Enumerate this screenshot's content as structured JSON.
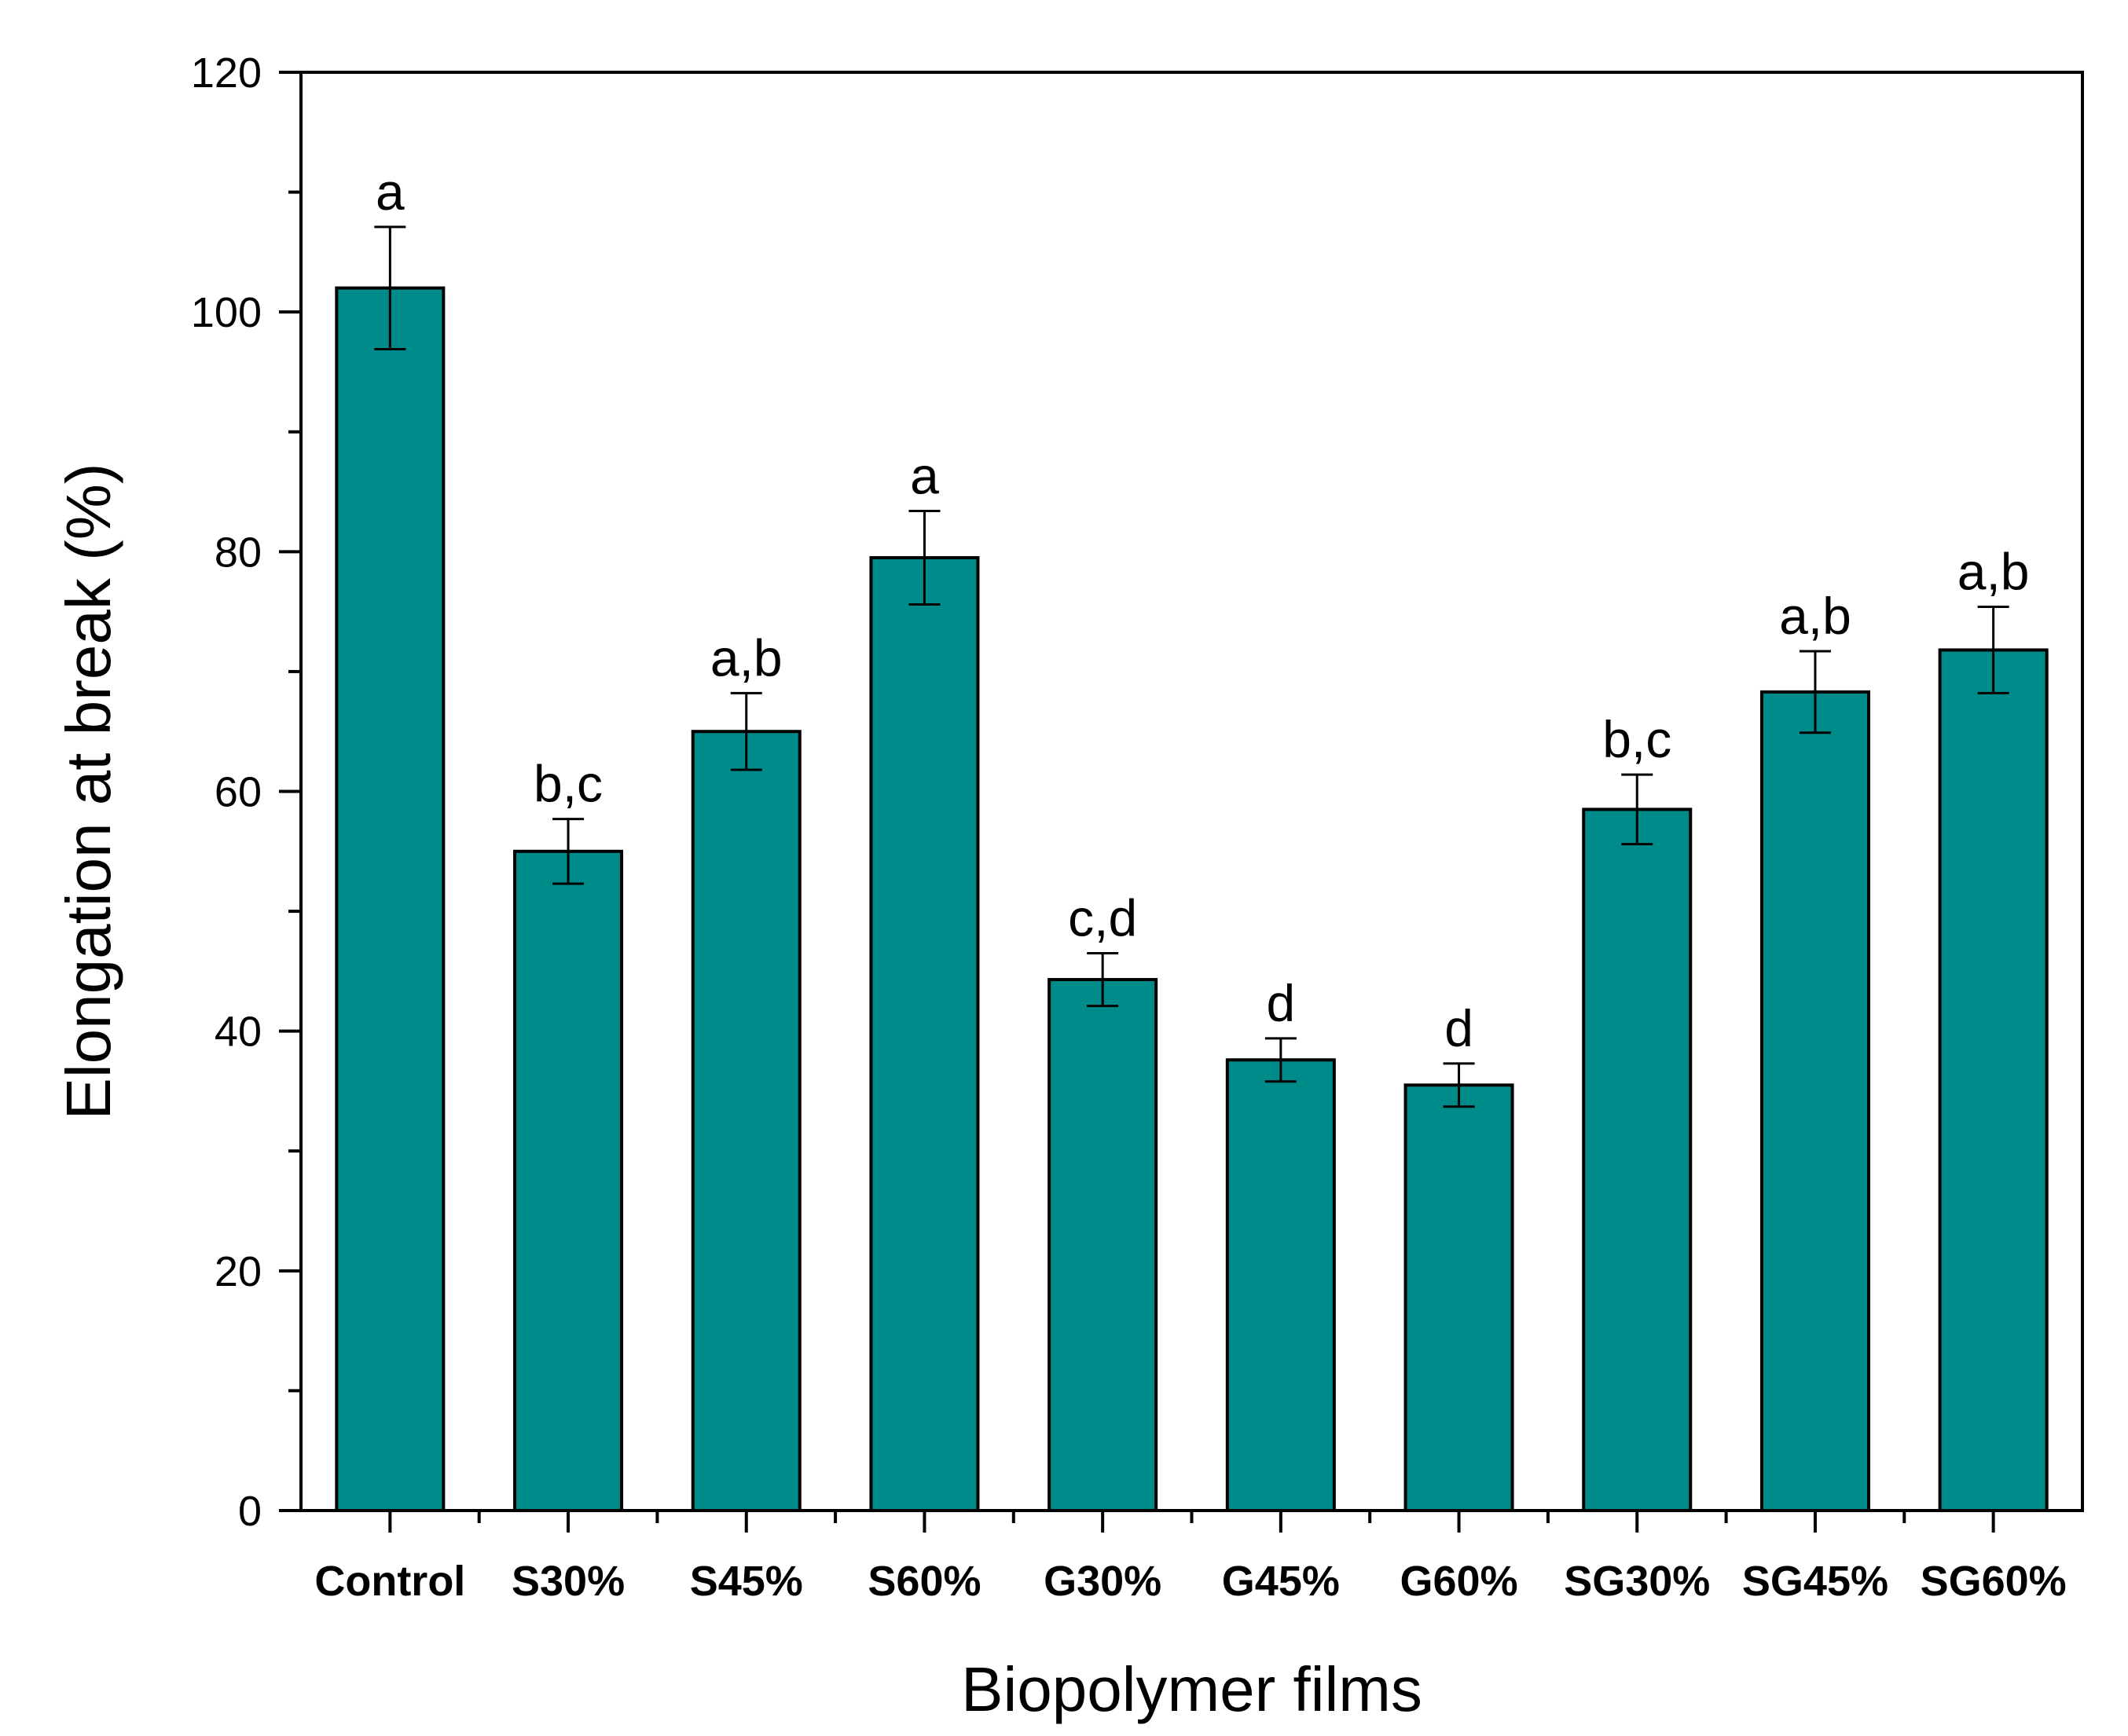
{
  "chart_data": {
    "type": "bar",
    "xlabel": "Biopolymer films",
    "ylabel": "Elongation at break (%)",
    "ylim": [
      0,
      120
    ],
    "yticks": [
      0,
      20,
      40,
      60,
      80,
      100,
      120
    ],
    "categories": [
      "Control",
      "S30%",
      "S45%",
      "S60%",
      "G30%",
      "G45%",
      "G60%",
      "SG30%",
      "SG45%",
      "SG60%"
    ],
    "values": [
      102,
      55,
      65,
      79.5,
      44.3,
      37.6,
      35.5,
      58.5,
      68.3,
      71.8
    ],
    "errors": [
      5.1,
      2.7,
      3.2,
      3.9,
      2.2,
      1.8,
      1.8,
      2.9,
      3.4,
      3.6
    ],
    "significance": [
      "a",
      "b,c",
      "a,b",
      "a",
      "c,d",
      "d",
      "d",
      "b,c",
      "a,b",
      "a,b"
    ],
    "bar_color": "#008B8B",
    "grid": false,
    "legend": "none"
  }
}
